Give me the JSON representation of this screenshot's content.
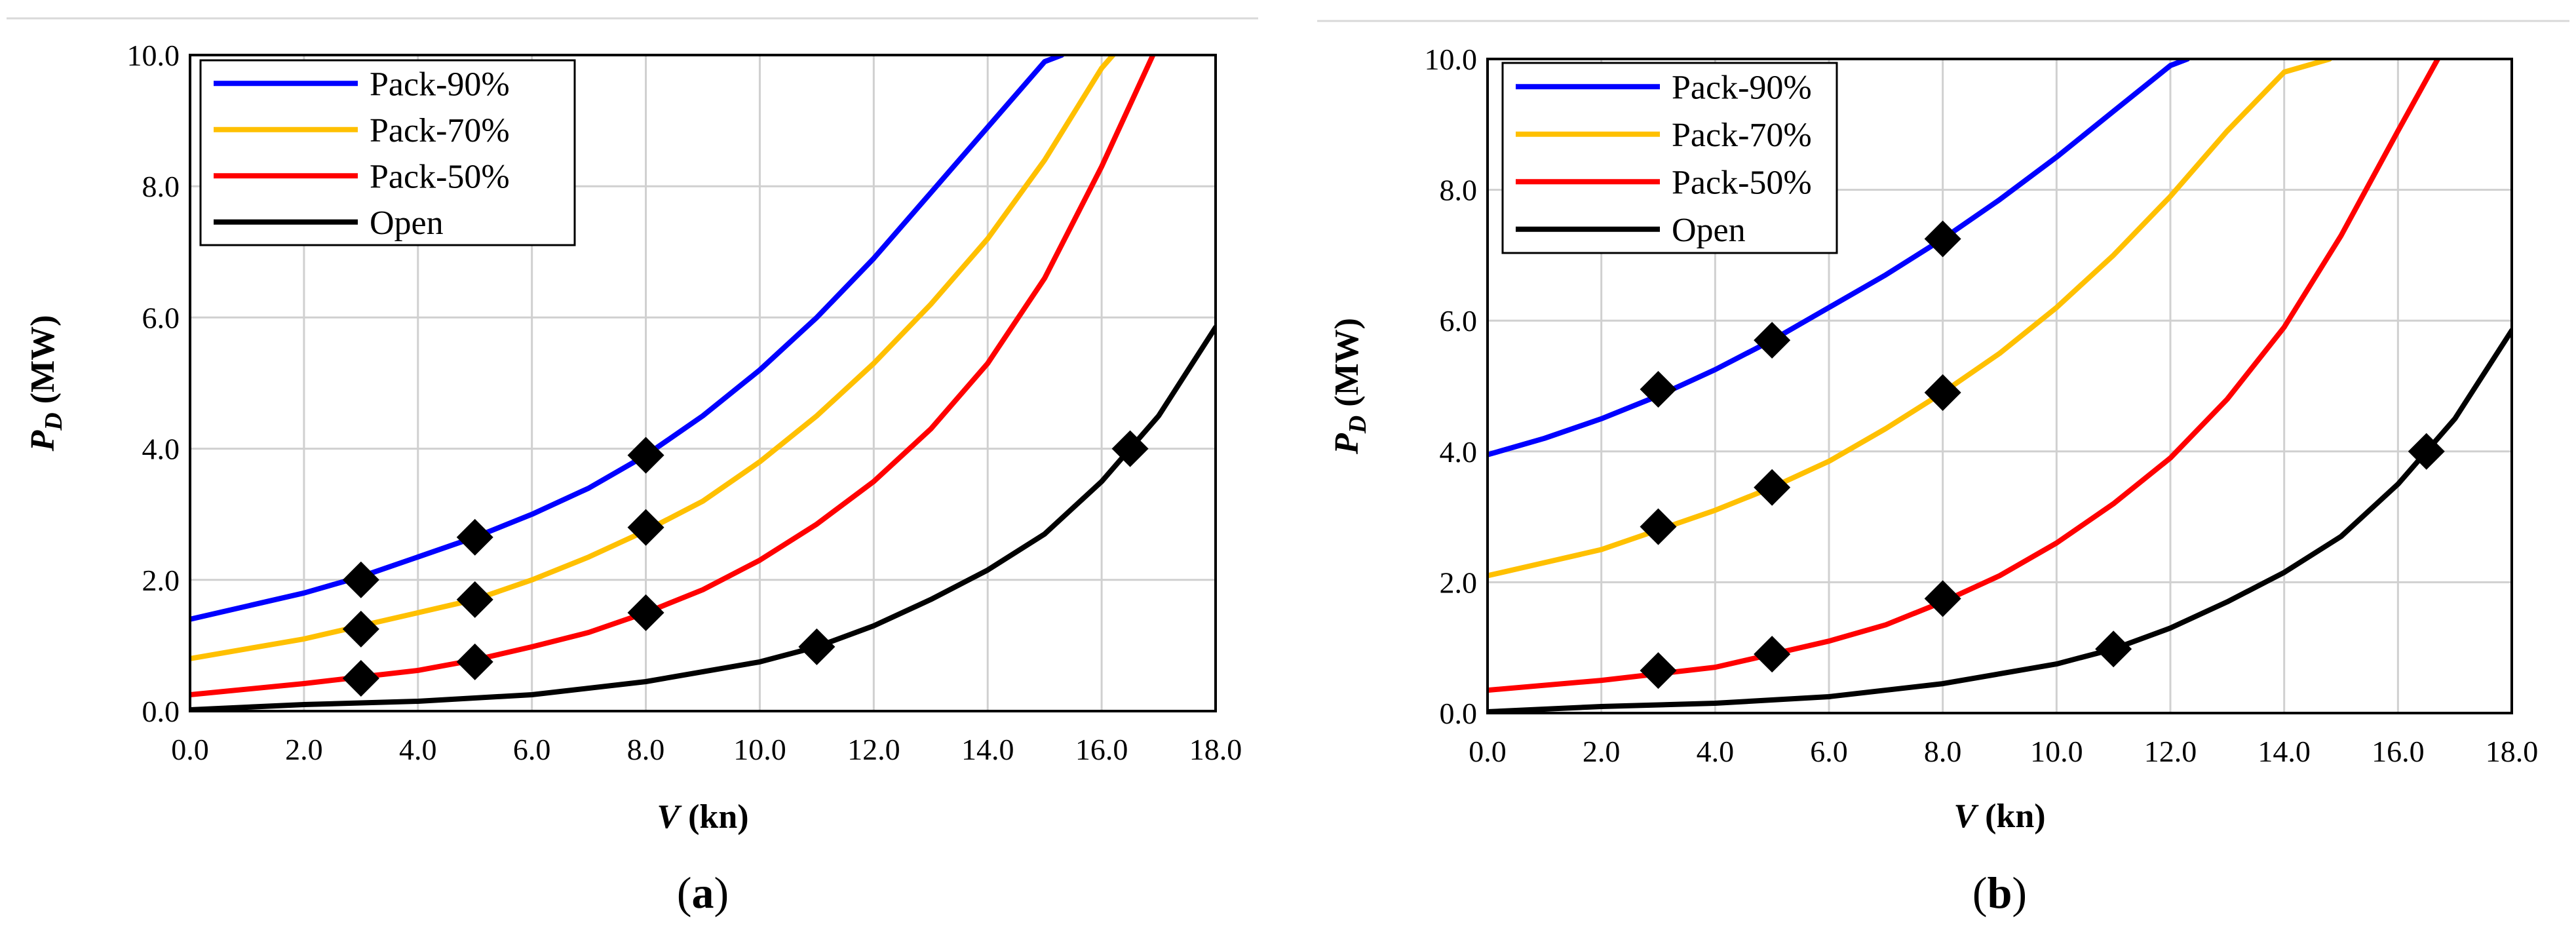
{
  "chart_data": [
    {
      "type": "line",
      "panel_label": "a",
      "xlabel": "V",
      "xlabel_unit": "(kn)",
      "ylabel_main": "P",
      "ylabel_sub": "D",
      "ylabel_unit": "(MW)",
      "xlim": [
        0,
        18
      ],
      "ylim": [
        0,
        10
      ],
      "xticks": [
        0,
        2,
        4,
        6,
        8,
        10,
        12,
        14,
        16,
        18
      ],
      "xtick_labels": [
        "0.0",
        "2.0",
        "4.0",
        "6.0",
        "8.0",
        "10.0",
        "12.0",
        "14.0",
        "16.0",
        "18.0"
      ],
      "yticks": [
        0,
        2,
        4,
        6,
        8,
        10
      ],
      "ytick_labels": [
        "0.0",
        "2.0",
        "4.0",
        "6.0",
        "8.0",
        "10.0"
      ],
      "grid": true,
      "legend_position": "top-left",
      "series": [
        {
          "name": "Pack-90%",
          "color": "#0000ff",
          "x": [
            0,
            2,
            3,
            4,
            5,
            6,
            7,
            8,
            9,
            10,
            11,
            12,
            13,
            14,
            15,
            15.3
          ],
          "y": [
            1.4,
            1.8,
            2.05,
            2.35,
            2.65,
            3.0,
            3.4,
            3.9,
            4.5,
            5.2,
            6.0,
            6.9,
            7.9,
            8.9,
            9.9,
            10.0
          ],
          "markers_x": [
            3,
            5,
            8
          ],
          "markers_y": [
            2.0,
            2.65,
            3.9
          ]
        },
        {
          "name": "Pack-70%",
          "color": "#ffc000",
          "x": [
            0,
            2,
            3,
            4,
            5,
            6,
            7,
            8,
            9,
            10,
            11,
            12,
            13,
            14,
            15,
            16,
            16.2
          ],
          "y": [
            0.8,
            1.1,
            1.3,
            1.5,
            1.7,
            2.0,
            2.35,
            2.75,
            3.2,
            3.8,
            4.5,
            5.3,
            6.2,
            7.2,
            8.4,
            9.8,
            10.0
          ],
          "markers_x": [
            3,
            5,
            8
          ],
          "markers_y": [
            1.25,
            1.7,
            2.8
          ]
        },
        {
          "name": "Pack-50%",
          "color": "#ff0000",
          "x": [
            0,
            2,
            3,
            4,
            5,
            6,
            7,
            8,
            9,
            10,
            11,
            12,
            13,
            14,
            15,
            16,
            16.9
          ],
          "y": [
            0.25,
            0.42,
            0.52,
            0.62,
            0.78,
            0.98,
            1.2,
            1.5,
            1.85,
            2.3,
            2.85,
            3.5,
            4.3,
            5.3,
            6.6,
            8.3,
            10.0
          ],
          "markers_x": [
            3,
            5,
            8
          ],
          "markers_y": [
            0.5,
            0.75,
            1.5
          ]
        },
        {
          "name": "Open",
          "color": "#000000",
          "x": [
            0,
            1,
            2,
            4,
            6,
            8,
            10,
            11,
            12,
            13,
            14,
            15,
            16,
            16.5,
            17,
            18
          ],
          "y": [
            0.02,
            0.06,
            0.1,
            0.15,
            0.25,
            0.45,
            0.75,
            0.98,
            1.3,
            1.7,
            2.15,
            2.7,
            3.5,
            4.0,
            4.5,
            5.85
          ],
          "markers_x": [
            11,
            16.5
          ],
          "markers_y": [
            0.98,
            4.0
          ]
        }
      ]
    },
    {
      "type": "line",
      "panel_label": "b",
      "xlabel": "V",
      "xlabel_unit": "(kn)",
      "ylabel_main": "P",
      "ylabel_sub": "D",
      "ylabel_unit": "(MW)",
      "xlim": [
        0,
        18
      ],
      "ylim": [
        0,
        10
      ],
      "xticks": [
        0,
        2,
        4,
        6,
        8,
        10,
        12,
        14,
        16,
        18
      ],
      "xtick_labels": [
        "0.0",
        "2.0",
        "4.0",
        "6.0",
        "8.0",
        "10.0",
        "12.0",
        "14.0",
        "16.0",
        "18.0"
      ],
      "yticks": [
        0,
        2,
        4,
        6,
        8,
        10
      ],
      "ytick_labels": [
        "0.0",
        "2.0",
        "4.0",
        "6.0",
        "8.0",
        "10.0"
      ],
      "grid": true,
      "legend_position": "top-left",
      "series": [
        {
          "name": "Pack-90%",
          "color": "#0000ff",
          "x": [
            0,
            1,
            2,
            3,
            4,
            5,
            6,
            7,
            8,
            9,
            10,
            11,
            12,
            12.3
          ],
          "y": [
            3.95,
            4.2,
            4.5,
            4.85,
            5.25,
            5.7,
            6.2,
            6.7,
            7.25,
            7.85,
            8.5,
            9.2,
            9.9,
            10.0
          ],
          "markers_x": [
            3,
            5,
            8
          ],
          "markers_y": [
            4.95,
            5.7,
            7.25
          ]
        },
        {
          "name": "Pack-70%",
          "color": "#ffc000",
          "x": [
            0,
            1,
            2,
            3,
            4,
            5,
            6,
            7,
            8,
            9,
            10,
            11,
            12,
            13,
            14,
            14.8
          ],
          "y": [
            2.1,
            2.3,
            2.5,
            2.8,
            3.1,
            3.45,
            3.85,
            4.35,
            4.9,
            5.5,
            6.2,
            7.0,
            7.9,
            8.9,
            9.8,
            10.0
          ],
          "markers_x": [
            3,
            5,
            8
          ],
          "markers_y": [
            2.85,
            3.45,
            4.9
          ]
        },
        {
          "name": "Pack-50%",
          "color": "#ff0000",
          "x": [
            0,
            2,
            3,
            4,
            5,
            6,
            7,
            8,
            9,
            10,
            11,
            12,
            13,
            14,
            15,
            16,
            16.7
          ],
          "y": [
            0.35,
            0.5,
            0.6,
            0.7,
            0.9,
            1.1,
            1.35,
            1.7,
            2.1,
            2.6,
            3.2,
            3.9,
            4.8,
            5.9,
            7.3,
            8.9,
            10.0
          ],
          "markers_x": [
            3,
            5,
            8
          ],
          "markers_y": [
            0.65,
            0.9,
            1.75
          ]
        },
        {
          "name": "Open",
          "color": "#000000",
          "x": [
            0,
            1,
            2,
            4,
            6,
            8,
            10,
            11,
            12,
            13,
            14,
            15,
            16,
            16.5,
            17,
            18
          ],
          "y": [
            0.02,
            0.06,
            0.1,
            0.15,
            0.25,
            0.45,
            0.75,
            0.98,
            1.3,
            1.7,
            2.15,
            2.7,
            3.5,
            4.0,
            4.5,
            5.85
          ],
          "markers_x": [
            11,
            16.5
          ],
          "markers_y": [
            0.98,
            4.0
          ]
        }
      ]
    }
  ]
}
